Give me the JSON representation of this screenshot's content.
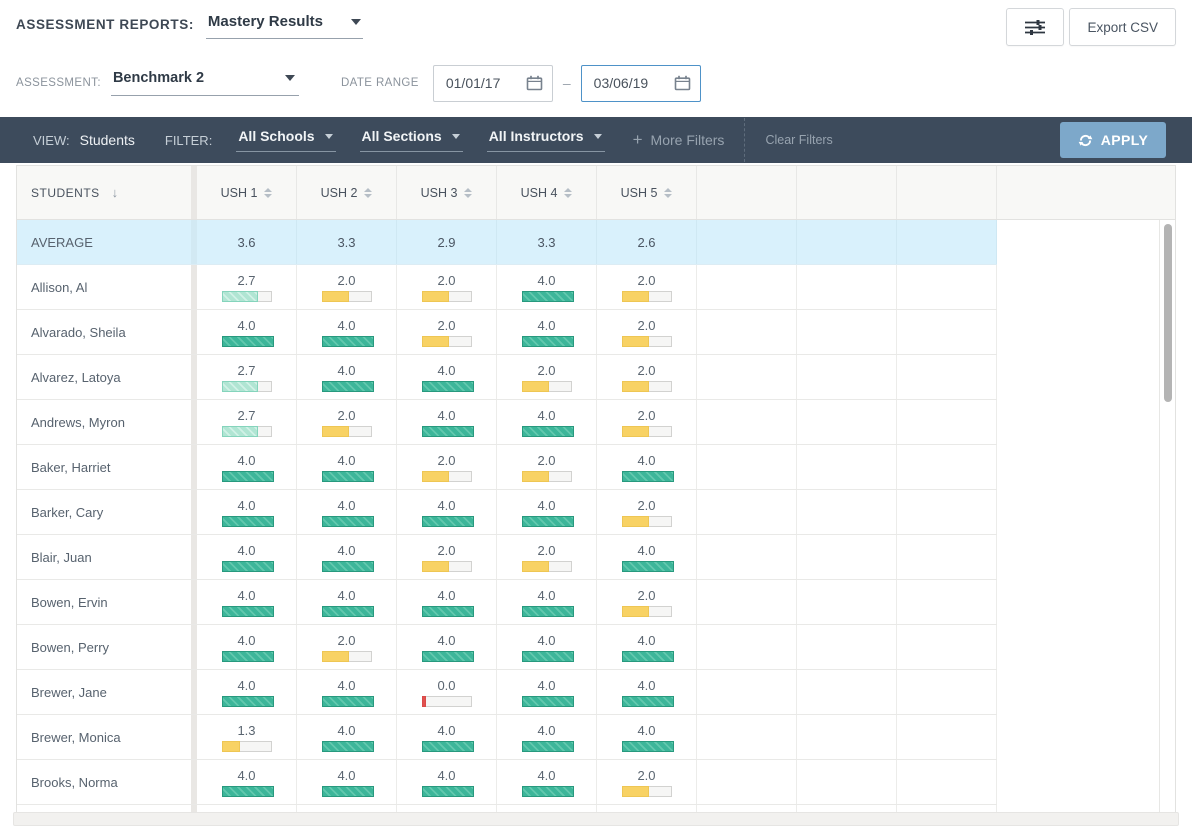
{
  "report_header": {
    "title": "ASSESSMENT REPORTS:",
    "report_selector": "Mastery Results",
    "export_button": "Export CSV"
  },
  "assessment_bar": {
    "assessment_label": "ASSESSMENT:",
    "assessment_value": "Benchmark 2",
    "date_range_label": "DATE RANGE",
    "date_from": "01/01/17",
    "date_separator": "–",
    "date_to": "03/06/19"
  },
  "filter_bar": {
    "view_label": "VIEW:",
    "view_value": "Students",
    "filter_label": "FILTER:",
    "school_filter": "All Schools",
    "section_filter": "All Sections",
    "instructor_filter": "All Instructors",
    "more_filters": "More Filters",
    "clear_filters": "Clear Filters",
    "apply_button": "APPLY"
  },
  "table": {
    "student_column_header": "STUDENTS",
    "columns": [
      "USH 1",
      "USH 2",
      "USH 3",
      "USH 4",
      "USH 5"
    ],
    "empty_column_count": 3,
    "max_score": 4,
    "average_row": {
      "label": "AVERAGE",
      "values": [
        "3.6",
        "3.3",
        "2.9",
        "3.3",
        "2.6"
      ]
    },
    "rows": [
      {
        "name": "Allison, Al",
        "scores": [
          "2.7",
          "2.0",
          "2.0",
          "4.0",
          "2.0"
        ]
      },
      {
        "name": "Alvarado, Sheila",
        "scores": [
          "4.0",
          "4.0",
          "2.0",
          "4.0",
          "2.0"
        ]
      },
      {
        "name": "Alvarez, Latoya",
        "scores": [
          "2.7",
          "4.0",
          "4.0",
          "2.0",
          "2.0"
        ]
      },
      {
        "name": "Andrews, Myron",
        "scores": [
          "2.7",
          "2.0",
          "4.0",
          "4.0",
          "2.0"
        ]
      },
      {
        "name": "Baker, Harriet",
        "scores": [
          "4.0",
          "4.0",
          "2.0",
          "2.0",
          "4.0"
        ]
      },
      {
        "name": "Barker, Cary",
        "scores": [
          "4.0",
          "4.0",
          "4.0",
          "4.0",
          "2.0"
        ]
      },
      {
        "name": "Blair, Juan",
        "scores": [
          "4.0",
          "4.0",
          "2.0",
          "2.0",
          "4.0"
        ]
      },
      {
        "name": "Bowen, Ervin",
        "scores": [
          "4.0",
          "4.0",
          "4.0",
          "4.0",
          "2.0"
        ]
      },
      {
        "name": "Bowen, Perry",
        "scores": [
          "4.0",
          "2.0",
          "4.0",
          "4.0",
          "4.0"
        ]
      },
      {
        "name": "Brewer, Jane",
        "scores": [
          "4.0",
          "4.0",
          "0.0",
          "4.0",
          "4.0"
        ]
      },
      {
        "name": "Brewer, Monica",
        "scores": [
          "1.3",
          "4.0",
          "4.0",
          "4.0",
          "4.0"
        ]
      },
      {
        "name": "Brooks, Norma",
        "scores": [
          "4.0",
          "4.0",
          "4.0",
          "4.0",
          "2.0"
        ]
      }
    ]
  },
  "colors": {
    "toolbar_bg": "#3d4b5c",
    "apply_button_bg": "#7da8ca",
    "average_row_bg": "#d9f1fc",
    "mastered_green": "#3db69a",
    "near_mastery_green": "#b0e5d3",
    "partial_yellow": "#f8d264",
    "none_red": "#e0514f",
    "active_date_border": "#4e92c8"
  }
}
